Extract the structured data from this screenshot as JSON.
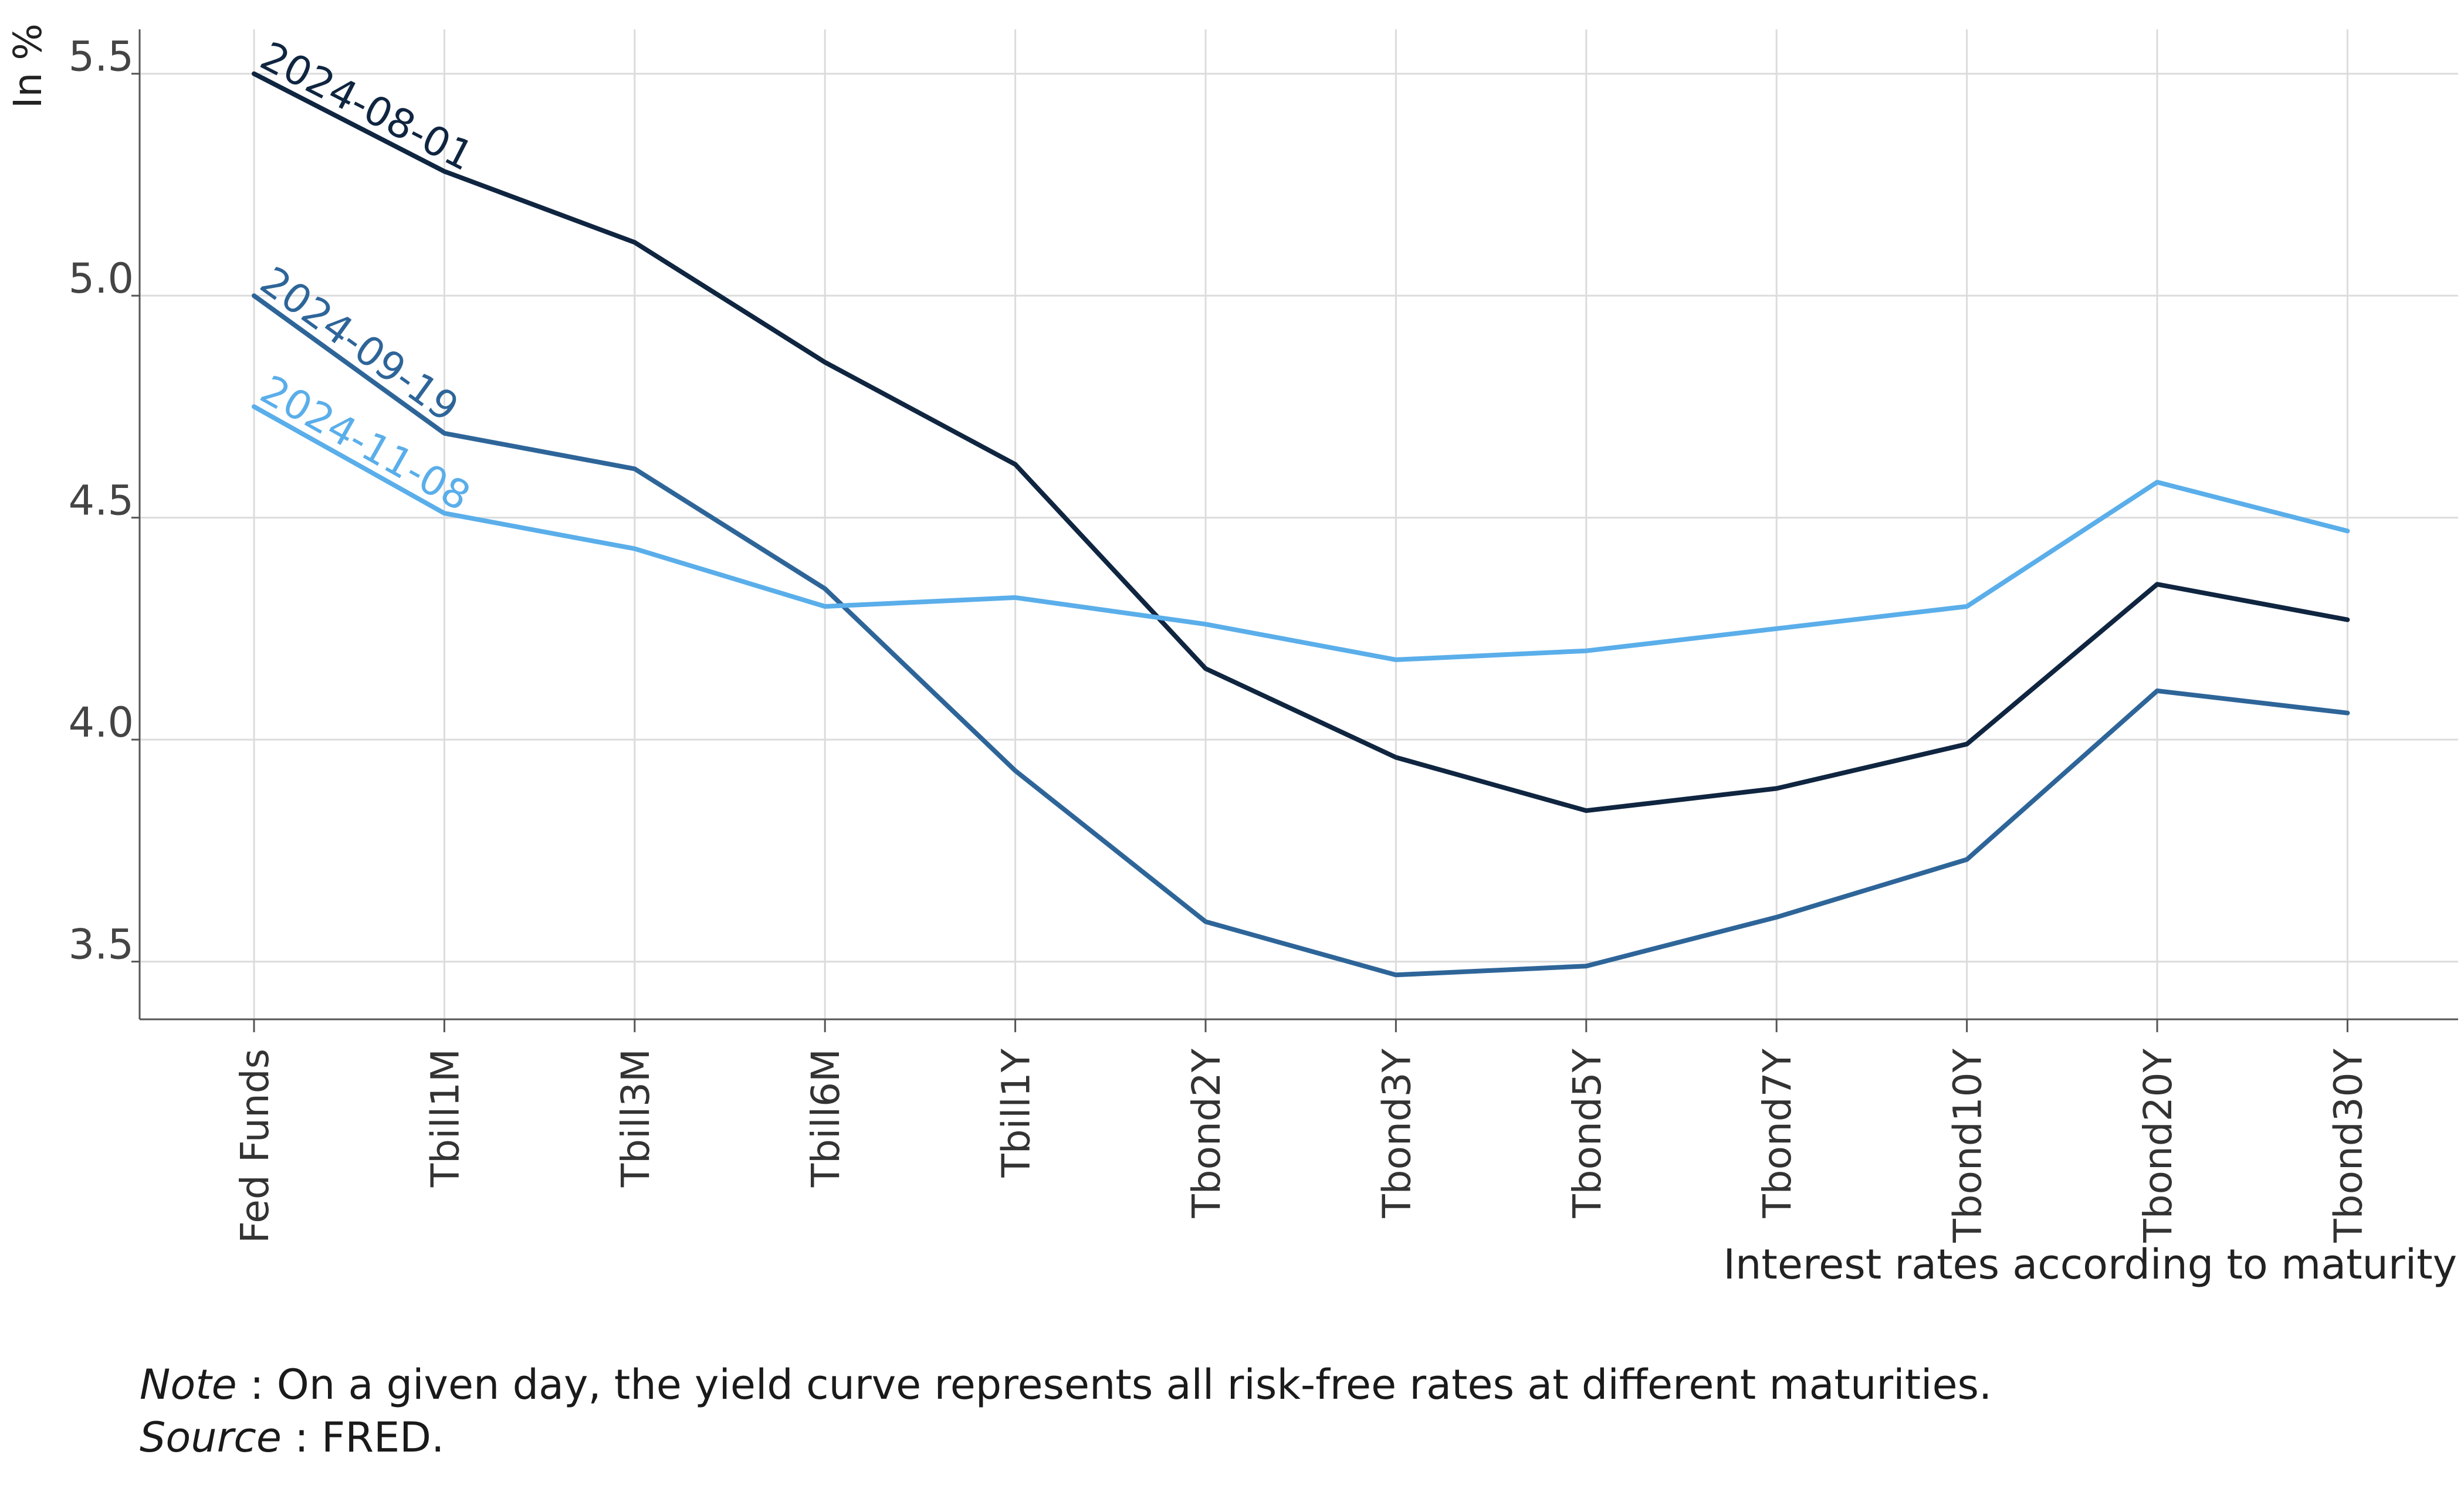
{
  "chart_data": {
    "type": "line",
    "ylabel": "In %",
    "xlabel": "Interest rates according to maturity",
    "ylim": [
      3.37,
      5.6
    ],
    "yticks": [
      "3.5",
      "4.0",
      "4.5",
      "5.0",
      "5.5"
    ],
    "ytick_values": [
      3.5,
      4.0,
      4.5,
      5.0,
      5.5
    ],
    "categories": [
      "Fed Funds",
      "Tbill1M",
      "Tbill3M",
      "Tbill6M",
      "Tbill1Y",
      "Tbond2Y",
      "Tbond3Y",
      "Tbond5Y",
      "Tbond7Y",
      "Tbond10Y",
      "Tbond20Y",
      "Tbond30Y"
    ],
    "grid": true,
    "legend": "inline labels rotated along each curve at Fed Funds",
    "series": [
      {
        "name": "2024-08-01",
        "color": "#0f2540",
        "values": [
          5.5,
          5.28,
          5.12,
          4.85,
          4.62,
          4.16,
          3.96,
          3.84,
          3.89,
          3.99,
          4.35,
          4.27
        ]
      },
      {
        "name": "2024-09-19",
        "color": "#2e6599",
        "values": [
          5.0,
          4.69,
          4.61,
          4.34,
          3.93,
          3.59,
          3.47,
          3.49,
          3.6,
          3.73,
          4.11,
          4.06
        ]
      },
      {
        "name": "2024-11-08",
        "color": "#5aaeea",
        "values": [
          4.75,
          4.51,
          4.43,
          4.3,
          4.32,
          4.26,
          4.18,
          4.2,
          4.25,
          4.3,
          4.58,
          4.47
        ]
      }
    ]
  },
  "note": {
    "note_label": "Note",
    "note_text": " : On a given day, the yield curve represents all risk-free rates at different maturities.",
    "source_label": "Source",
    "source_text": " : FRED."
  }
}
